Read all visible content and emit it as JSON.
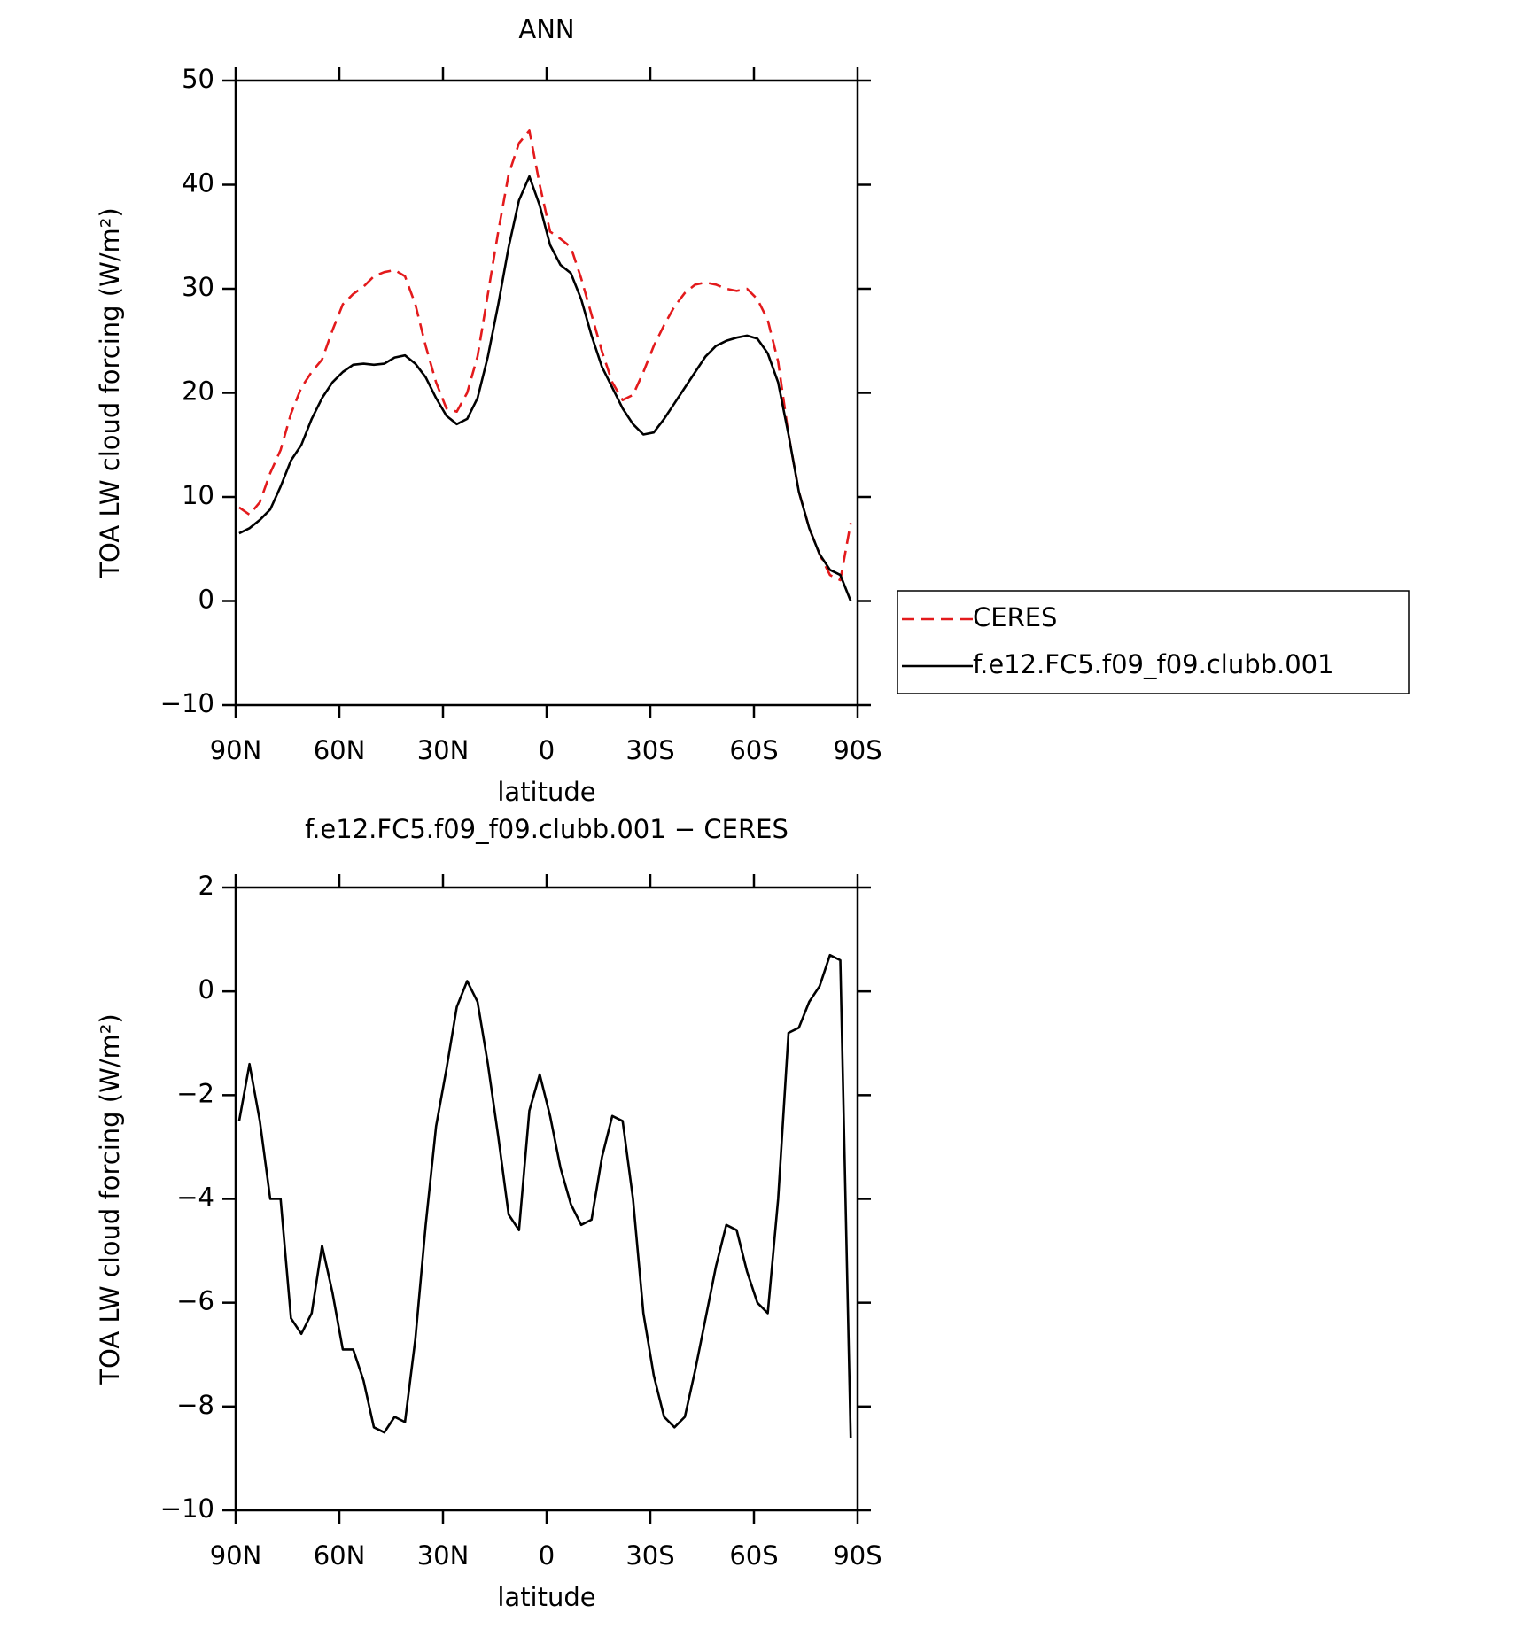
{
  "chart_data": [
    {
      "type": "line",
      "title": "ANN",
      "xlabel": "latitude",
      "ylabel": "TOA LW cloud forcing (W/m²)",
      "x": [
        89,
        86,
        83,
        80,
        77,
        74,
        71,
        68,
        65,
        62,
        59,
        56,
        53,
        50,
        47,
        44,
        41,
        38,
        35,
        32,
        29,
        26,
        23,
        20,
        17,
        14,
        11,
        8,
        5,
        2,
        -1,
        -4,
        -7,
        -10,
        -13,
        -16,
        -19,
        -22,
        -25,
        -28,
        -31,
        -34,
        -37,
        -40,
        -43,
        -46,
        -49,
        -52,
        -55,
        -58,
        -61,
        -64,
        -67,
        -70,
        -73,
        -76,
        -79,
        -82,
        -85,
        -88
      ],
      "series": [
        {
          "name": "CERES",
          "color": "#e31a1c",
          "line_style": "dashed",
          "values": [
            9,
            8.3,
            9.5,
            12.3,
            14.5,
            18,
            20.5,
            22,
            23.2,
            26,
            28.5,
            29.5,
            30.2,
            31.2,
            31.6,
            31.8,
            31.2,
            28.5,
            24.5,
            21,
            18.5,
            18.2,
            20,
            23.5,
            29.5,
            35.5,
            41,
            44,
            45.2,
            40,
            35.5,
            34.8,
            34,
            31,
            27.5,
            24,
            21,
            19.3,
            19.8,
            22,
            24.5,
            26.5,
            28.3,
            29.6,
            30.4,
            30.6,
            30.4,
            30,
            29.8,
            30,
            29,
            27,
            23,
            16,
            10.5,
            7,
            4.5,
            2.5,
            2,
            7.5
          ]
        },
        {
          "name": "f.e12.FC5.f09_f09.clubb.001",
          "color": "#000000",
          "line_style": "solid",
          "values": [
            6.5,
            7,
            7.8,
            8.8,
            11,
            13.5,
            15,
            17.5,
            19.5,
            21,
            22,
            22.7,
            22.8,
            22.7,
            22.8,
            23.4,
            23.6,
            22.8,
            21.5,
            19.5,
            17.8,
            17,
            17.5,
            19.5,
            23.5,
            28.5,
            34,
            38.5,
            40.8,
            38,
            34.2,
            32.3,
            31.5,
            29,
            25.5,
            22.5,
            20.5,
            18.5,
            17,
            16,
            16.2,
            17.5,
            19,
            20.5,
            22,
            23.5,
            24.5,
            25,
            25.3,
            25.5,
            25.2,
            23.8,
            21,
            16,
            10.5,
            7,
            4.5,
            3,
            2.5,
            0
          ]
        }
      ],
      "xlim": [
        90,
        -90
      ],
      "xticks": [
        {
          "value": 90,
          "label": "90N"
        },
        {
          "value": 60,
          "label": "60N"
        },
        {
          "value": 30,
          "label": "30N"
        },
        0,
        {
          "value": -30,
          "label": "30S"
        },
        {
          "value": -60,
          "label": "60S"
        },
        {
          "value": -90,
          "label": "90S"
        }
      ],
      "ylim": [
        -10,
        50
      ],
      "yticks": [
        {
          "value": -10,
          "label": "−10"
        },
        0,
        10,
        20,
        30,
        40,
        50
      ],
      "legend": true
    },
    {
      "type": "line",
      "title": "f.e12.FC5.f09_f09.clubb.001 − CERES",
      "xlabel": "latitude",
      "ylabel": "TOA LW cloud forcing (W/m²)",
      "x": [
        89,
        86,
        83,
        80,
        77,
        74,
        71,
        68,
        65,
        62,
        59,
        56,
        53,
        50,
        47,
        44,
        41,
        38,
        35,
        32,
        29,
        26,
        23,
        20,
        17,
        14,
        11,
        8,
        5,
        2,
        -1,
        -4,
        -7,
        -10,
        -13,
        -16,
        -19,
        -22,
        -25,
        -28,
        -31,
        -34,
        -37,
        -40,
        -43,
        -46,
        -49,
        -52,
        -55,
        -58,
        -61,
        -64,
        -67,
        -70,
        -73,
        -76,
        -79,
        -82,
        -85,
        -88
      ],
      "series": [
        {
          "color": "#000000",
          "line_style": "solid",
          "values": [
            -2.5,
            -1.4,
            -2.5,
            -4,
            -4,
            -6.3,
            -6.6,
            -6.2,
            -4.9,
            -5.8,
            -6.9,
            -6.9,
            -7.5,
            -8.4,
            -8.5,
            -8.2,
            -8.3,
            -6.7,
            -4.5,
            -2.6,
            -1.5,
            -0.3,
            0.2,
            -0.2,
            -1.4,
            -2.8,
            -4.3,
            -4.6,
            -2.3,
            -1.6,
            -2.4,
            -3.4,
            -4.1,
            -4.5,
            -4.4,
            -3.2,
            -2.4,
            -2.5,
            -4,
            -6.2,
            -7.4,
            -8.2,
            -8.4,
            -8.2,
            -7.3,
            -6.3,
            -5.3,
            -4.5,
            -4.6,
            -5.4,
            -6,
            -6.2,
            -4,
            -0.8,
            -0.7,
            -0.2,
            0.1,
            0.7,
            0.6,
            -8.6
          ]
        }
      ],
      "xlim": [
        90,
        -90
      ],
      "xticks": [
        {
          "value": 90,
          "label": "90N"
        },
        {
          "value": 60,
          "label": "60N"
        },
        {
          "value": 30,
          "label": "30N"
        },
        0,
        {
          "value": -30,
          "label": "30S"
        },
        {
          "value": -60,
          "label": "60S"
        },
        {
          "value": -90,
          "label": "90S"
        }
      ],
      "ylim": [
        -10,
        2
      ],
      "yticks": [
        {
          "value": -10,
          "label": "−10"
        },
        {
          "value": -8,
          "label": "−8"
        },
        {
          "value": -6,
          "label": "−6"
        },
        {
          "value": -4,
          "label": "−4"
        },
        {
          "value": -2,
          "label": "−2"
        },
        0,
        2
      ],
      "legend": false
    }
  ]
}
